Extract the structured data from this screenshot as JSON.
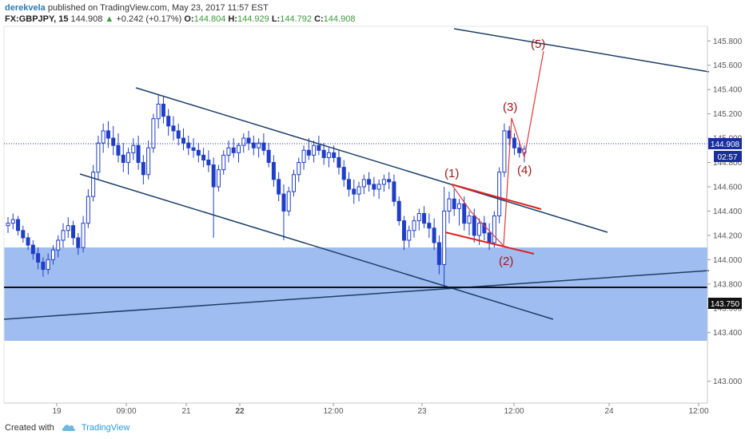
{
  "header": {
    "author": "derekvela",
    "published": "published on TradingView.com, May 23, 2017 11:57 EST",
    "symbol": "FX:GBPJPY, 15",
    "price": "144.908",
    "change_arrow": "▲",
    "change": "+0.242 (+0.17%)",
    "o_label": "O:",
    "o_value": "144.804",
    "h_label": "H:",
    "h_value": "144.929",
    "l_label": "L:",
    "l_value": "144.792",
    "c_label": "C:",
    "c_value": "144.908"
  },
  "footer": {
    "created": "Created with",
    "brand": "TradingView",
    "logo_icon": "tradingview-cloud-icon"
  },
  "colors": {
    "candle": "#1f3ec7",
    "zone": "#8fb2ee",
    "channel": "#1b3f66",
    "support": "#111111",
    "wedge": "#e02020",
    "projection": "#e03a3a",
    "wave_label": "#a01818",
    "price_line": "#1b2f9c"
  },
  "chart_data": {
    "type": "candlestick",
    "y_range": [
      142.82,
      145.92
    ],
    "y_ticks": [
      "145.800",
      "145.600",
      "145.400",
      "145.200",
      "145.000",
      "144.800",
      "144.600",
      "144.400",
      "144.200",
      "144.000",
      "143.800",
      "143.600",
      "143.400",
      "143.000"
    ],
    "x_ticks": [
      "19",
      "09:00",
      "21",
      "22",
      "12:00",
      "23",
      "12:00",
      "24",
      "12:00"
    ],
    "price_label": "144.908",
    "countdown_label": "02:57",
    "level_label": "143.750",
    "support_level": 143.75,
    "zone": [
      143.33,
      144.07
    ],
    "wave_labels": [
      "(1)",
      "(2)",
      "(3)",
      "(4)",
      "(5)"
    ],
    "wave_prices": [
      144.62,
      143.98,
      145.25,
      144.72,
      145.62
    ],
    "candles": [
      [
        144.28,
        144.35,
        144.22,
        144.3
      ],
      [
        144.3,
        144.38,
        144.25,
        144.33
      ],
      [
        144.33,
        144.36,
        144.2,
        144.24
      ],
      [
        144.24,
        144.28,
        144.14,
        144.18
      ],
      [
        144.18,
        144.22,
        144.08,
        144.12
      ],
      [
        144.12,
        144.16,
        144.0,
        144.05
      ],
      [
        144.05,
        144.1,
        143.92,
        143.98
      ],
      [
        143.98,
        144.02,
        143.86,
        143.92
      ],
      [
        143.92,
        144.05,
        143.88,
        144.0
      ],
      [
        144.0,
        144.12,
        143.96,
        144.08
      ],
      [
        144.08,
        144.2,
        144.02,
        144.16
      ],
      [
        144.16,
        144.3,
        144.1,
        144.24
      ],
      [
        144.24,
        144.35,
        144.18,
        144.28
      ],
      [
        144.28,
        144.32,
        144.12,
        144.18
      ],
      [
        144.18,
        144.22,
        144.04,
        144.1
      ],
      [
        144.1,
        144.36,
        144.06,
        144.3
      ],
      [
        144.3,
        144.58,
        144.26,
        144.52
      ],
      [
        144.52,
        144.78,
        144.48,
        144.72
      ],
      [
        144.72,
        145.02,
        144.66,
        144.96
      ],
      [
        144.96,
        145.12,
        144.88,
        145.06
      ],
      [
        145.06,
        145.14,
        144.92,
        145.0
      ],
      [
        145.0,
        145.1,
        144.86,
        144.94
      ],
      [
        144.94,
        145.04,
        144.8,
        144.86
      ],
      [
        144.86,
        144.96,
        144.72,
        144.8
      ],
      [
        144.8,
        144.92,
        144.7,
        144.88
      ],
      [
        144.88,
        145.0,
        144.82,
        144.94
      ],
      [
        144.94,
        145.02,
        144.74,
        144.8
      ],
      [
        144.8,
        144.86,
        144.62,
        144.7
      ],
      [
        144.7,
        144.98,
        144.66,
        144.92
      ],
      [
        144.92,
        145.2,
        144.88,
        145.16
      ],
      [
        145.16,
        145.36,
        145.08,
        145.28
      ],
      [
        145.28,
        145.34,
        145.12,
        145.18
      ],
      [
        145.18,
        145.24,
        145.02,
        145.1
      ],
      [
        145.1,
        145.18,
        144.98,
        145.06
      ],
      [
        145.06,
        145.12,
        144.94,
        145.0
      ],
      [
        145.0,
        145.08,
        144.9,
        144.96
      ],
      [
        144.96,
        145.02,
        144.86,
        144.92
      ],
      [
        144.92,
        145.0,
        144.84,
        144.9
      ],
      [
        144.9,
        144.96,
        144.8,
        144.86
      ],
      [
        144.86,
        144.92,
        144.76,
        144.82
      ],
      [
        144.82,
        144.9,
        144.72,
        144.78
      ],
      [
        144.78,
        144.84,
        144.18,
        144.6
      ],
      [
        144.6,
        144.78,
        144.56,
        144.74
      ],
      [
        144.74,
        144.9,
        144.7,
        144.86
      ],
      [
        144.86,
        144.98,
        144.8,
        144.92
      ],
      [
        144.92,
        145.0,
        144.84,
        144.88
      ],
      [
        144.88,
        144.96,
        144.8,
        144.94
      ],
      [
        144.94,
        145.04,
        144.88,
        145.0
      ],
      [
        145.0,
        145.06,
        144.9,
        144.96
      ],
      [
        144.96,
        145.02,
        144.86,
        144.92
      ],
      [
        144.92,
        145.0,
        144.84,
        144.96
      ],
      [
        144.96,
        145.04,
        144.86,
        144.9
      ],
      [
        144.9,
        144.96,
        144.76,
        144.8
      ],
      [
        144.8,
        144.86,
        144.6,
        144.66
      ],
      [
        144.66,
        144.72,
        144.48,
        144.54
      ],
      [
        144.54,
        144.62,
        144.16,
        144.4
      ],
      [
        144.4,
        144.6,
        144.36,
        144.56
      ],
      [
        144.56,
        144.74,
        144.52,
        144.7
      ],
      [
        144.7,
        144.84,
        144.64,
        144.8
      ],
      [
        144.8,
        144.94,
        144.74,
        144.9
      ],
      [
        144.9,
        145.0,
        144.82,
        144.86
      ],
      [
        144.86,
        144.98,
        144.8,
        144.94
      ],
      [
        144.94,
        145.02,
        144.86,
        144.9
      ],
      [
        144.9,
        144.96,
        144.78,
        144.84
      ],
      [
        144.84,
        144.92,
        144.76,
        144.88
      ],
      [
        144.88,
        144.94,
        144.8,
        144.84
      ],
      [
        144.84,
        144.9,
        144.7,
        144.76
      ],
      [
        144.76,
        144.82,
        144.6,
        144.66
      ],
      [
        144.66,
        144.72,
        144.52,
        144.58
      ],
      [
        144.58,
        144.66,
        144.46,
        144.54
      ],
      [
        144.54,
        144.64,
        144.48,
        144.6
      ],
      [
        144.6,
        144.7,
        144.54,
        144.66
      ],
      [
        144.66,
        144.72,
        144.56,
        144.62
      ],
      [
        144.62,
        144.68,
        144.52,
        144.58
      ],
      [
        144.58,
        144.66,
        144.5,
        144.62
      ],
      [
        144.62,
        144.7,
        144.56,
        144.66
      ],
      [
        144.66,
        144.72,
        144.58,
        144.64
      ],
      [
        144.64,
        144.7,
        144.44,
        144.48
      ],
      [
        144.48,
        144.52,
        144.28,
        144.32
      ],
      [
        144.32,
        144.36,
        144.08,
        144.16
      ],
      [
        144.16,
        144.28,
        144.1,
        144.24
      ],
      [
        144.24,
        144.36,
        144.18,
        144.32
      ],
      [
        144.32,
        144.42,
        144.24,
        144.38
      ],
      [
        144.38,
        144.44,
        144.26,
        144.3
      ],
      [
        144.3,
        144.38,
        144.18,
        144.26
      ],
      [
        144.26,
        144.34,
        144.08,
        144.14
      ],
      [
        144.14,
        144.2,
        143.88,
        143.96
      ],
      [
        143.96,
        144.6,
        143.78,
        144.4
      ],
      [
        144.4,
        144.56,
        144.3,
        144.5
      ],
      [
        144.5,
        144.58,
        144.36,
        144.42
      ],
      [
        144.42,
        144.5,
        144.28,
        144.46
      ],
      [
        144.46,
        144.52,
        144.24,
        144.3
      ],
      [
        144.3,
        144.4,
        144.2,
        144.36
      ],
      [
        144.36,
        144.42,
        144.14,
        144.2
      ],
      [
        144.2,
        144.34,
        144.12,
        144.3
      ],
      [
        144.3,
        144.36,
        144.16,
        144.22
      ],
      [
        144.22,
        144.3,
        144.08,
        144.14
      ],
      [
        144.14,
        144.4,
        144.1,
        144.36
      ],
      [
        144.36,
        144.76,
        144.3,
        144.72
      ],
      [
        144.72,
        145.12,
        144.68,
        145.06
      ],
      [
        145.06,
        145.1,
        144.94,
        145.0
      ],
      [
        145.0,
        145.04,
        144.86,
        144.92
      ],
      [
        144.92,
        144.98,
        144.84,
        144.88
      ],
      [
        144.88,
        144.94,
        144.8,
        144.91
      ]
    ]
  }
}
